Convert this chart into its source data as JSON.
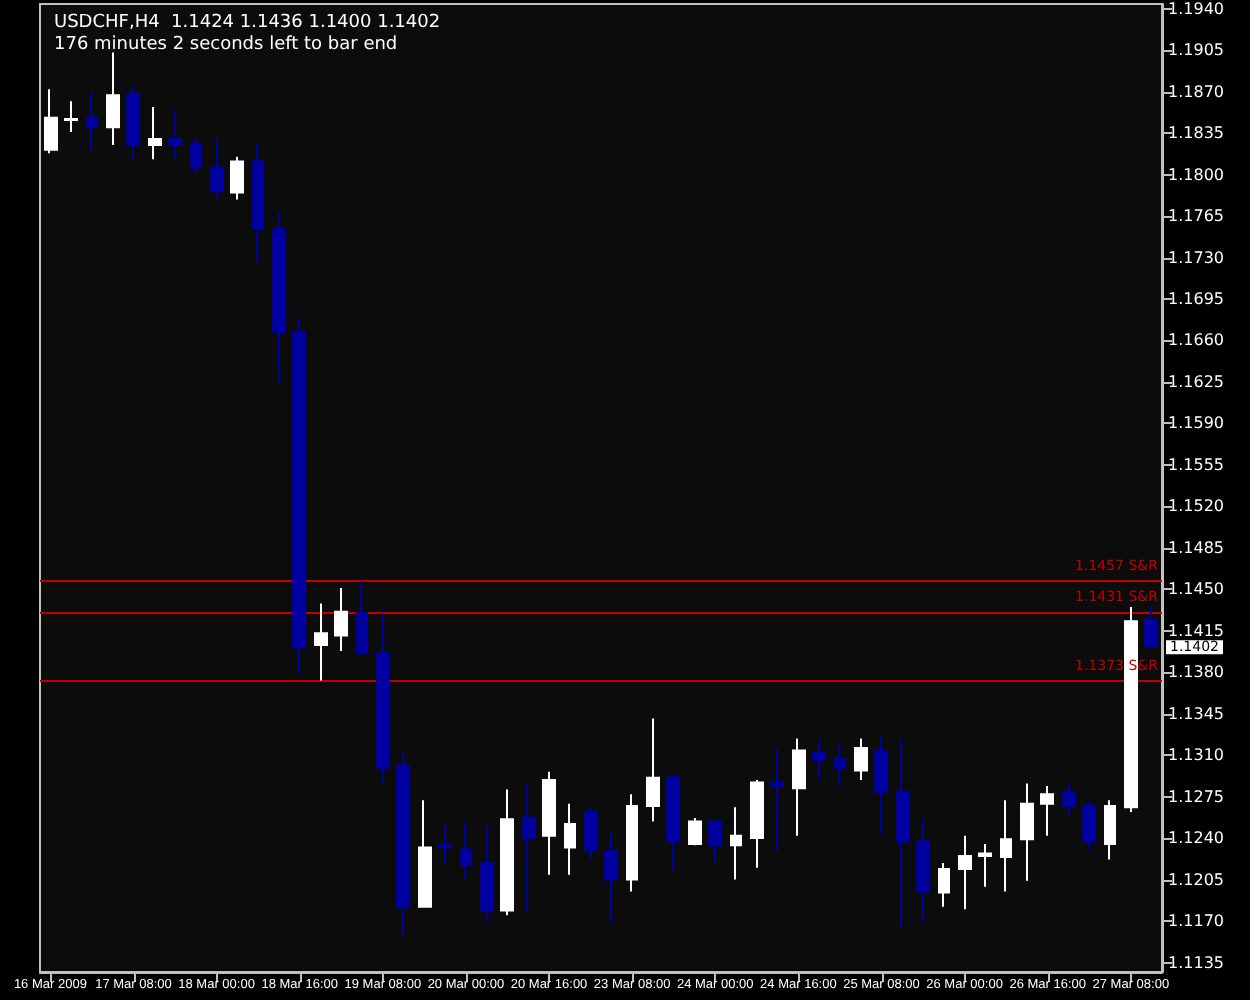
{
  "chart_data": {
    "type": "candlestick",
    "title": "USDCHF,H4  1.1424 1.1436 1.1400 1.1402",
    "subtitle": "176 minutes 2 seconds left to bar end",
    "categories": [
      "16 Mar 2009",
      null,
      null,
      null,
      "17 Mar 08:00",
      null,
      null,
      null,
      "18 Mar 00:00",
      null,
      null,
      null,
      "18 Mar 16:00",
      null,
      null,
      null,
      "19 Mar 08:00",
      null,
      null,
      null,
      "20 Mar 00:00",
      null,
      null,
      null,
      "20 Mar 16:00",
      null,
      null,
      null,
      "23 Mar 08:00",
      null,
      null,
      null,
      "24 Mar 00:00",
      null,
      null,
      null,
      "24 Mar 16:00",
      null,
      null,
      null,
      "25 Mar 08:00",
      null,
      null,
      null,
      "26 Mar 00:00",
      null,
      null,
      null,
      "26 Mar 16:00",
      null,
      null,
      null,
      "27 Mar 08:00",
      null
    ],
    "ohlc": [
      [
        1.1821,
        1.1872,
        1.1818,
        1.1848
      ],
      [
        1.1846,
        1.1862,
        1.1836,
        1.1847
      ],
      [
        1.1848,
        1.187,
        1.1821,
        1.184
      ],
      [
        1.184,
        1.1903,
        1.1825,
        1.1867
      ],
      [
        1.1868,
        1.1875,
        1.1813,
        1.1825
      ],
      [
        1.1825,
        1.1857,
        1.1813,
        1.183
      ],
      [
        1.183,
        1.1855,
        1.1813,
        1.1825
      ],
      [
        1.1826,
        1.1831,
        1.1801,
        1.1806
      ],
      [
        1.1806,
        1.1831,
        1.1779,
        1.1786
      ],
      [
        1.1785,
        1.1815,
        1.1779,
        1.1811
      ],
      [
        1.1811,
        1.1826,
        1.1726,
        1.1754
      ],
      [
        1.1754,
        1.1768,
        1.1625,
        1.1667
      ],
      [
        1.1667,
        1.1679,
        1.1378,
        1.1401
      ],
      [
        1.1403,
        1.1438,
        1.1373,
        1.1413
      ],
      [
        1.1411,
        1.1451,
        1.1398,
        1.1431
      ],
      [
        1.143,
        1.1457,
        1.1396,
        1.1396
      ],
      [
        1.1396,
        1.143,
        1.1286,
        1.1299
      ],
      [
        1.1301,
        1.1312,
        1.1157,
        1.1182
      ],
      [
        1.1182,
        1.1272,
        1.1182,
        1.1232
      ],
      [
        1.1234,
        1.1252,
        1.1219,
        1.1232
      ],
      [
        1.123,
        1.1254,
        1.1205,
        1.1217
      ],
      [
        1.1219,
        1.1251,
        1.1169,
        1.1179
      ],
      [
        1.1179,
        1.1281,
        1.1175,
        1.1256
      ],
      [
        1.1257,
        1.1287,
        1.1179,
        1.124
      ],
      [
        1.1242,
        1.1296,
        1.1209,
        1.1289
      ],
      [
        1.1232,
        1.1269,
        1.1209,
        1.1252
      ],
      [
        1.1262,
        1.1266,
        1.1222,
        1.123
      ],
      [
        1.1229,
        1.1244,
        1.1169,
        1.1205
      ],
      [
        1.1205,
        1.1277,
        1.1195,
        1.1267
      ],
      [
        1.1267,
        1.1341,
        1.1254,
        1.1291
      ],
      [
        1.1291,
        1.1294,
        1.1212,
        1.1237
      ],
      [
        1.1235,
        1.1257,
        1.1234,
        1.1254
      ],
      [
        1.1254,
        1.1256,
        1.122,
        1.1234
      ],
      [
        1.1234,
        1.1266,
        1.1205,
        1.1242
      ],
      [
        1.124,
        1.1289,
        1.1215,
        1.1287
      ],
      [
        1.1287,
        1.1316,
        1.1229,
        1.1284
      ],
      [
        1.1282,
        1.1324,
        1.1242,
        1.1314
      ],
      [
        1.1312,
        1.1323,
        1.1289,
        1.1306
      ],
      [
        1.1307,
        1.1321,
        1.1284,
        1.1299
      ],
      [
        1.1297,
        1.1324,
        1.1289,
        1.1316
      ],
      [
        1.1314,
        1.1326,
        1.1244,
        1.1279
      ],
      [
        1.1279,
        1.1323,
        1.1165,
        1.1237
      ],
      [
        1.1237,
        1.1256,
        1.1169,
        1.1195
      ],
      [
        1.1194,
        1.1219,
        1.1182,
        1.1214
      ],
      [
        1.1214,
        1.1242,
        1.118,
        1.1225
      ],
      [
        1.1225,
        1.1235,
        1.1199,
        1.1227
      ],
      [
        1.1224,
        1.1272,
        1.1195,
        1.1239
      ],
      [
        1.1239,
        1.1286,
        1.1204,
        1.1269
      ],
      [
        1.1269,
        1.1284,
        1.1242,
        1.1277
      ],
      [
        1.1279,
        1.1287,
        1.1259,
        1.1267
      ],
      [
        1.1267,
        1.1271,
        1.123,
        1.1237
      ],
      [
        1.1235,
        1.1272,
        1.1222,
        1.1267
      ],
      [
        1.1266,
        1.1435,
        1.1262,
        1.1423
      ],
      [
        1.1424,
        1.1436,
        1.14,
        1.1402
      ]
    ],
    "colors": [
      "#ffffff",
      "#ffffff",
      "#0000a0",
      "#ffffff",
      "#0000a0",
      "#ffffff",
      "#0000a0",
      "#0000a0",
      "#0000a0",
      "#ffffff",
      "#0000a0",
      "#0000a0",
      "#0000a0",
      "#ffffff",
      "#ffffff",
      "#0000a0",
      "#0000a0",
      "#0000a0",
      "#ffffff",
      "#0000a0",
      "#0000a0",
      "#0000a0",
      "#ffffff",
      "#0000a0",
      "#ffffff",
      "#ffffff",
      "#0000a0",
      "#0000a0",
      "#ffffff",
      "#ffffff",
      "#0000a0",
      "#ffffff",
      "#0000a0",
      "#ffffff",
      "#ffffff",
      "#0000a0",
      "#ffffff",
      "#0000a0",
      "#0000a0",
      "#ffffff",
      "#0000a0",
      "#0000a0",
      "#0000a0",
      "#ffffff",
      "#ffffff",
      "#ffffff",
      "#ffffff",
      "#ffffff",
      "#ffffff",
      "#0000a0",
      "#0000a0",
      "#ffffff",
      "#ffffff",
      "#0000a0"
    ],
    "ylim": [
      1.1127,
      1.1944
    ],
    "yticks": [
      1.1135,
      {
        "value": 1.117,
        "label": "1.1170"
      },
      1.1205,
      {
        "value": 1.124,
        "label": "1.1240"
      },
      1.1275,
      {
        "value": 1.131,
        "label": "1.1310"
      },
      1.1345,
      {
        "value": 1.138,
        "label": "1.1380"
      },
      1.1415,
      {
        "value": 1.145,
        "label": "1.1450"
      },
      1.1485,
      {
        "value": 1.152,
        "label": "1.1520"
      },
      1.1555,
      {
        "value": 1.159,
        "label": "1.1590"
      },
      1.1625,
      {
        "value": 1.166,
        "label": "1.1660"
      },
      1.1695,
      {
        "value": 1.173,
        "label": "1.1730"
      },
      1.1765,
      {
        "value": 1.18,
        "label": "1.1800"
      },
      1.1835,
      {
        "value": 1.187,
        "label": "1.1870"
      },
      1.1905,
      {
        "value": 1.194,
        "label": "1.1940"
      }
    ],
    "ref_lines": [
      {
        "axis": "y",
        "value": 1.1457,
        "label": "1.1457 S&R",
        "color": "#c00000"
      },
      {
        "axis": "y",
        "value": 1.1431,
        "label": "1.1431 S&R",
        "color": "#c00000"
      },
      {
        "axis": "y",
        "value": 1.1373,
        "label": "1.1373 S&R",
        "color": "#c00000"
      }
    ],
    "annotations": [
      "1.1402"
    ],
    "grid": false
  }
}
